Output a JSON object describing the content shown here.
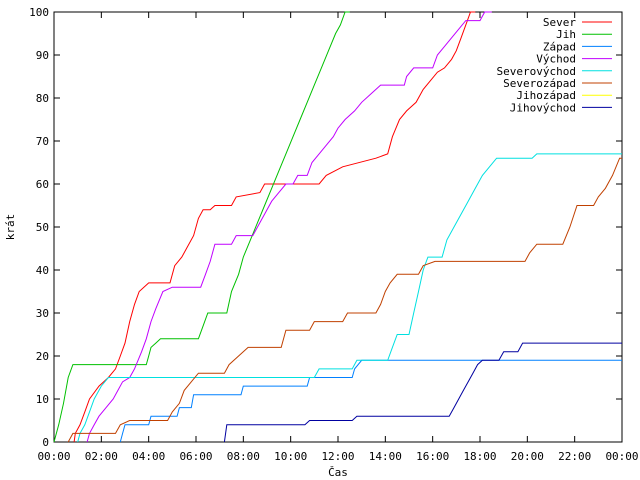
{
  "chart_data": {
    "type": "line",
    "title": "",
    "xlabel": "Čas",
    "ylabel": "krát",
    "xlim": [
      0,
      24
    ],
    "ylim": [
      0,
      100
    ],
    "x_ticks": [
      0,
      2,
      4,
      6,
      8,
      10,
      12,
      14,
      16,
      18,
      20,
      22,
      24
    ],
    "x_tick_labels": [
      "00:00",
      "02:00",
      "04:00",
      "06:00",
      "08:00",
      "10:00",
      "12:00",
      "14:00",
      "16:00",
      "18:00",
      "20:00",
      "22:00",
      "00:00"
    ],
    "y_ticks": [
      0,
      10,
      20,
      30,
      40,
      50,
      60,
      70,
      80,
      90,
      100
    ],
    "y_tick_labels": [
      "0",
      "10",
      "20",
      "30",
      "40",
      "50",
      "60",
      "70",
      "80",
      "90",
      "100"
    ],
    "grid": false,
    "legend_position": "top-right",
    "series": [
      {
        "name": "Sever",
        "color": "#ff0000",
        "points": [
          [
            0.85,
            0
          ],
          [
            0.9,
            2
          ],
          [
            1.1,
            4
          ],
          [
            1.3,
            7
          ],
          [
            1.5,
            10
          ],
          [
            1.9,
            13
          ],
          [
            2.3,
            15
          ],
          [
            2.6,
            17
          ],
          [
            2.8,
            20
          ],
          [
            3.0,
            23
          ],
          [
            3.2,
            28
          ],
          [
            3.4,
            32
          ],
          [
            3.6,
            35
          ],
          [
            4.0,
            37
          ],
          [
            4.9,
            37
          ],
          [
            5.1,
            41
          ],
          [
            5.4,
            43
          ],
          [
            5.6,
            45
          ],
          [
            5.9,
            48
          ],
          [
            6.1,
            52
          ],
          [
            6.3,
            54
          ],
          [
            6.6,
            54
          ],
          [
            6.8,
            55
          ],
          [
            7.5,
            55
          ],
          [
            7.7,
            57
          ],
          [
            8.7,
            58
          ],
          [
            8.9,
            60
          ],
          [
            11.2,
            60
          ],
          [
            11.5,
            62
          ],
          [
            12.2,
            64
          ],
          [
            13.6,
            66
          ],
          [
            14.1,
            67
          ],
          [
            14.3,
            71
          ],
          [
            14.6,
            75
          ],
          [
            14.9,
            77
          ],
          [
            15.3,
            79
          ],
          [
            15.6,
            82
          ],
          [
            15.9,
            84
          ],
          [
            16.2,
            86
          ],
          [
            16.5,
            87
          ],
          [
            16.8,
            89
          ],
          [
            17.0,
            91
          ],
          [
            17.2,
            94
          ],
          [
            17.4,
            97
          ],
          [
            17.6,
            100
          ],
          [
            17.8,
            100
          ]
        ]
      },
      {
        "name": "Jih",
        "color": "#00c000",
        "points": [
          [
            0,
            0
          ],
          [
            0.2,
            4
          ],
          [
            0.4,
            9
          ],
          [
            0.6,
            15
          ],
          [
            0.8,
            18
          ],
          [
            3.9,
            18
          ],
          [
            4.0,
            20
          ],
          [
            4.1,
            22
          ],
          [
            4.3,
            23
          ],
          [
            4.5,
            24
          ],
          [
            6.1,
            24
          ],
          [
            6.3,
            27
          ],
          [
            6.5,
            30
          ],
          [
            7.3,
            30
          ],
          [
            7.5,
            35
          ],
          [
            7.8,
            39
          ],
          [
            8.0,
            43
          ],
          [
            8.3,
            47
          ],
          [
            8.6,
            51
          ],
          [
            8.9,
            55
          ],
          [
            9.2,
            59
          ],
          [
            9.5,
            63
          ],
          [
            9.8,
            67
          ],
          [
            10.1,
            71
          ],
          [
            10.4,
            75
          ],
          [
            10.7,
            79
          ],
          [
            11.0,
            83
          ],
          [
            11.3,
            87
          ],
          [
            11.6,
            91
          ],
          [
            11.9,
            95
          ],
          [
            12.1,
            97
          ],
          [
            12.3,
            100
          ],
          [
            12.5,
            100
          ]
        ]
      },
      {
        "name": "Západ",
        "color": "#0080ff",
        "points": [
          [
            2.8,
            0
          ],
          [
            2.9,
            2
          ],
          [
            3.0,
            4
          ],
          [
            4.0,
            4
          ],
          [
            4.1,
            6
          ],
          [
            5.2,
            6
          ],
          [
            5.3,
            8
          ],
          [
            5.8,
            8
          ],
          [
            5.9,
            11
          ],
          [
            7.9,
            11
          ],
          [
            8.0,
            13
          ],
          [
            10.7,
            13
          ],
          [
            10.8,
            15
          ],
          [
            12.6,
            15
          ],
          [
            12.7,
            17
          ],
          [
            13.0,
            19
          ],
          [
            18.5,
            19
          ],
          [
            24.0,
            19
          ]
        ]
      },
      {
        "name": "Východ",
        "color": "#c000ff",
        "points": [
          [
            1.4,
            0
          ],
          [
            1.5,
            2
          ],
          [
            1.7,
            4
          ],
          [
            1.9,
            6
          ],
          [
            2.2,
            8
          ],
          [
            2.5,
            10
          ],
          [
            2.7,
            12
          ],
          [
            2.9,
            14
          ],
          [
            3.2,
            15
          ],
          [
            3.4,
            17
          ],
          [
            3.7,
            21
          ],
          [
            3.9,
            24
          ],
          [
            4.1,
            28
          ],
          [
            4.3,
            31
          ],
          [
            4.6,
            35
          ],
          [
            5.0,
            36
          ],
          [
            6.2,
            36
          ],
          [
            6.4,
            39
          ],
          [
            6.6,
            42
          ],
          [
            6.8,
            46
          ],
          [
            7.5,
            46
          ],
          [
            7.7,
            48
          ],
          [
            8.4,
            48
          ],
          [
            8.6,
            50
          ],
          [
            8.9,
            53
          ],
          [
            9.2,
            56
          ],
          [
            9.5,
            58
          ],
          [
            9.8,
            60
          ],
          [
            10.1,
            60
          ],
          [
            10.3,
            62
          ],
          [
            10.7,
            62
          ],
          [
            10.9,
            65
          ],
          [
            11.2,
            67
          ],
          [
            11.5,
            69
          ],
          [
            11.8,
            71
          ],
          [
            12.0,
            73
          ],
          [
            12.3,
            75
          ],
          [
            12.7,
            77
          ],
          [
            13.0,
            79
          ],
          [
            13.4,
            81
          ],
          [
            13.8,
            83
          ],
          [
            14.8,
            83
          ],
          [
            14.9,
            85
          ],
          [
            15.2,
            87
          ],
          [
            16.0,
            87
          ],
          [
            16.2,
            90
          ],
          [
            16.5,
            92
          ],
          [
            16.8,
            94
          ],
          [
            17.1,
            96
          ],
          [
            17.4,
            98
          ],
          [
            18.0,
            98
          ],
          [
            18.2,
            100
          ],
          [
            18.5,
            100
          ]
        ]
      },
      {
        "name": "Severovýchod",
        "color": "#00e0e0",
        "points": [
          [
            1.0,
            0
          ],
          [
            1.1,
            2
          ],
          [
            1.3,
            4
          ],
          [
            1.5,
            7
          ],
          [
            1.7,
            10
          ],
          [
            2.0,
            13
          ],
          [
            2.3,
            15
          ],
          [
            11.0,
            15
          ],
          [
            11.2,
            17
          ],
          [
            12.6,
            17
          ],
          [
            12.8,
            19
          ],
          [
            14.1,
            19
          ],
          [
            14.3,
            22
          ],
          [
            14.5,
            25
          ],
          [
            15.0,
            25
          ],
          [
            15.2,
            30
          ],
          [
            15.4,
            35
          ],
          [
            15.6,
            40
          ],
          [
            15.8,
            43
          ],
          [
            16.4,
            43
          ],
          [
            16.6,
            47
          ],
          [
            16.9,
            50
          ],
          [
            17.2,
            53
          ],
          [
            17.5,
            56
          ],
          [
            17.8,
            59
          ],
          [
            18.1,
            62
          ],
          [
            18.4,
            64
          ],
          [
            18.7,
            66
          ],
          [
            20.2,
            66
          ],
          [
            20.4,
            67
          ],
          [
            24.0,
            67
          ]
        ]
      },
      {
        "name": "Severozápad",
        "color": "#c04000",
        "points": [
          [
            0.6,
            0
          ],
          [
            0.8,
            2
          ],
          [
            2.6,
            2
          ],
          [
            2.8,
            4
          ],
          [
            3.2,
            5
          ],
          [
            4.8,
            5
          ],
          [
            5.0,
            7
          ],
          [
            5.3,
            9
          ],
          [
            5.5,
            12
          ],
          [
            5.8,
            14
          ],
          [
            6.1,
            16
          ],
          [
            7.2,
            16
          ],
          [
            7.4,
            18
          ],
          [
            7.8,
            20
          ],
          [
            8.2,
            22
          ],
          [
            9.6,
            22
          ],
          [
            9.8,
            26
          ],
          [
            10.8,
            26
          ],
          [
            11.0,
            28
          ],
          [
            12.2,
            28
          ],
          [
            12.4,
            30
          ],
          [
            13.6,
            30
          ],
          [
            13.8,
            32
          ],
          [
            14.0,
            35
          ],
          [
            14.2,
            37
          ],
          [
            14.5,
            39
          ],
          [
            15.4,
            39
          ],
          [
            15.6,
            41
          ],
          [
            16.1,
            42
          ],
          [
            19.9,
            42
          ],
          [
            20.1,
            44
          ],
          [
            20.4,
            46
          ],
          [
            21.5,
            46
          ],
          [
            21.8,
            50
          ],
          [
            22.1,
            55
          ],
          [
            22.8,
            55
          ],
          [
            23.0,
            57
          ],
          [
            23.3,
            59
          ],
          [
            23.6,
            62
          ],
          [
            23.9,
            66
          ],
          [
            24.0,
            66
          ]
        ]
      },
      {
        "name": "Jihozápad",
        "color": "#ffff00",
        "points": []
      },
      {
        "name": "Jihovýchod",
        "color": "#0000a0",
        "points": [
          [
            7.2,
            0
          ],
          [
            7.3,
            4
          ],
          [
            10.6,
            4
          ],
          [
            10.8,
            5
          ],
          [
            12.6,
            5
          ],
          [
            12.8,
            6
          ],
          [
            16.7,
            6
          ],
          [
            16.9,
            8
          ],
          [
            17.1,
            10
          ],
          [
            17.3,
            12
          ],
          [
            17.5,
            14
          ],
          [
            17.7,
            16
          ],
          [
            17.9,
            18
          ],
          [
            18.1,
            19
          ],
          [
            18.8,
            19
          ],
          [
            19.0,
            21
          ],
          [
            19.6,
            21
          ],
          [
            19.8,
            23
          ],
          [
            24.0,
            23
          ]
        ]
      }
    ]
  }
}
